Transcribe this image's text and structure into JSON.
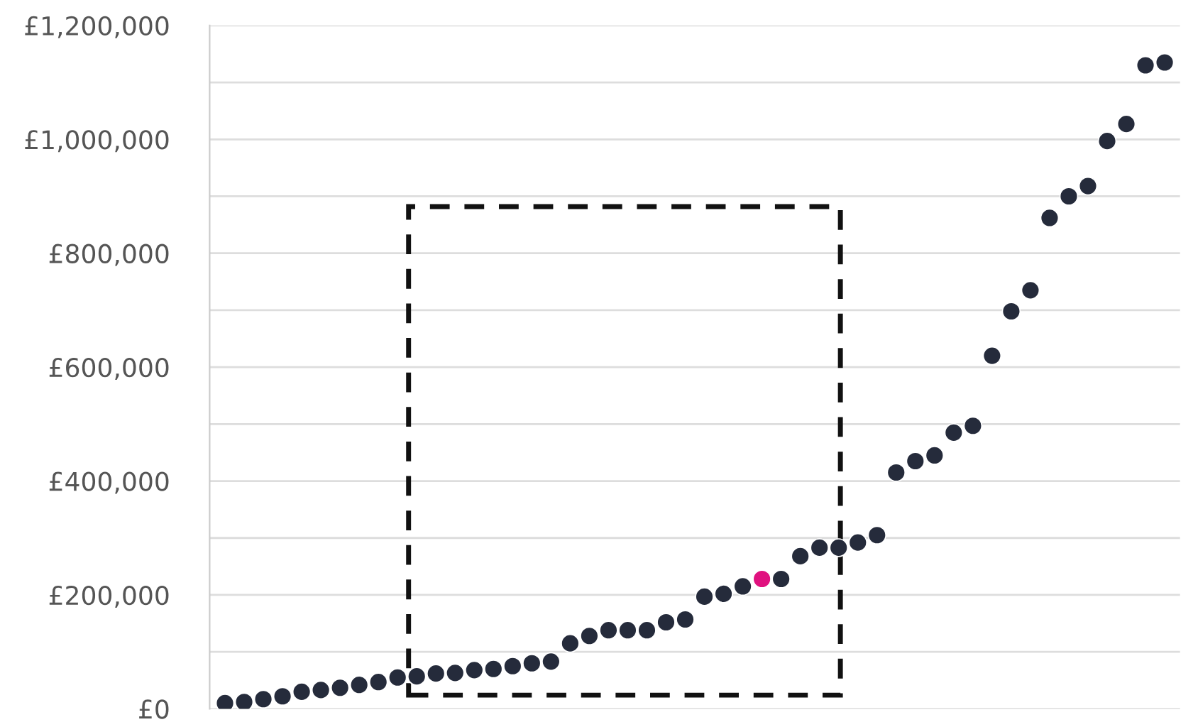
{
  "chart_data": {
    "type": "scatter",
    "categories": [
      null,
      null,
      null,
      null,
      null,
      null,
      null,
      null,
      null,
      null,
      null,
      null,
      null,
      null,
      null,
      null,
      null,
      null,
      null,
      null,
      null,
      null,
      null,
      null,
      null,
      null,
      null,
      null,
      null,
      null,
      null,
      null,
      null,
      null,
      null,
      null,
      null,
      null,
      null,
      null,
      null,
      null,
      null,
      null,
      null,
      null,
      null,
      null,
      null,
      null
    ],
    "values": [
      10000,
      12000,
      17000,
      22000,
      30000,
      33000,
      37000,
      42000,
      47000,
      55000,
      57000,
      62000,
      63000,
      68000,
      70000,
      75000,
      80000,
      83000,
      115000,
      128000,
      138000,
      138000,
      138000,
      152000,
      157000,
      197000,
      202000,
      215000,
      228000,
      228000,
      268000,
      283000,
      283000,
      292000,
      305000,
      415000,
      435000,
      445000,
      485000,
      497000,
      620000,
      698000,
      735000,
      862000,
      900000,
      918000,
      997000,
      1027000,
      1130000,
      1135000
    ],
    "colors": [
      "#252b3b",
      "#252b3b",
      "#252b3b",
      "#252b3b",
      "#252b3b",
      "#252b3b",
      "#252b3b",
      "#252b3b",
      "#252b3b",
      "#252b3b",
      "#252b3b",
      "#252b3b",
      "#252b3b",
      "#252b3b",
      "#252b3b",
      "#252b3b",
      "#252b3b",
      "#252b3b",
      "#252b3b",
      "#252b3b",
      "#252b3b",
      "#252b3b",
      "#252b3b",
      "#252b3b",
      "#252b3b",
      "#252b3b",
      "#252b3b",
      "#252b3b",
      "#e0117f",
      "#252b3b",
      "#252b3b",
      "#252b3b",
      "#252b3b",
      "#252b3b",
      "#252b3b",
      "#252b3b",
      "#252b3b",
      "#252b3b",
      "#252b3b",
      "#252b3b",
      "#252b3b",
      "#252b3b",
      "#252b3b",
      "#252b3b",
      "#252b3b",
      "#252b3b",
      "#252b3b",
      "#252b3b",
      "#252b3b",
      "#252b3b"
    ],
    "ylim": [
      0,
      1200000
    ],
    "yticks": [
      {
        "value": 0,
        "label": "£0"
      },
      {
        "value": 100000,
        "label": null
      },
      {
        "value": 200000,
        "label": "£200,000"
      },
      {
        "value": 300000,
        "label": null
      },
      {
        "value": 400000,
        "label": "£400,000"
      },
      {
        "value": 500000,
        "label": null
      },
      {
        "value": 600000,
        "label": "£600,000"
      },
      {
        "value": 700000,
        "label": null
      },
      {
        "value": 800000,
        "label": "£800,000"
      },
      {
        "value": 900000,
        "label": null
      },
      {
        "value": 1000000,
        "label": "£1,000,000"
      },
      {
        "value": 1100000,
        "label": null
      },
      {
        "value": 1200000,
        "label": "£1,200,000"
      }
    ],
    "grid": "y",
    "tick_labels": "y",
    "marker": "circle"
  }
}
